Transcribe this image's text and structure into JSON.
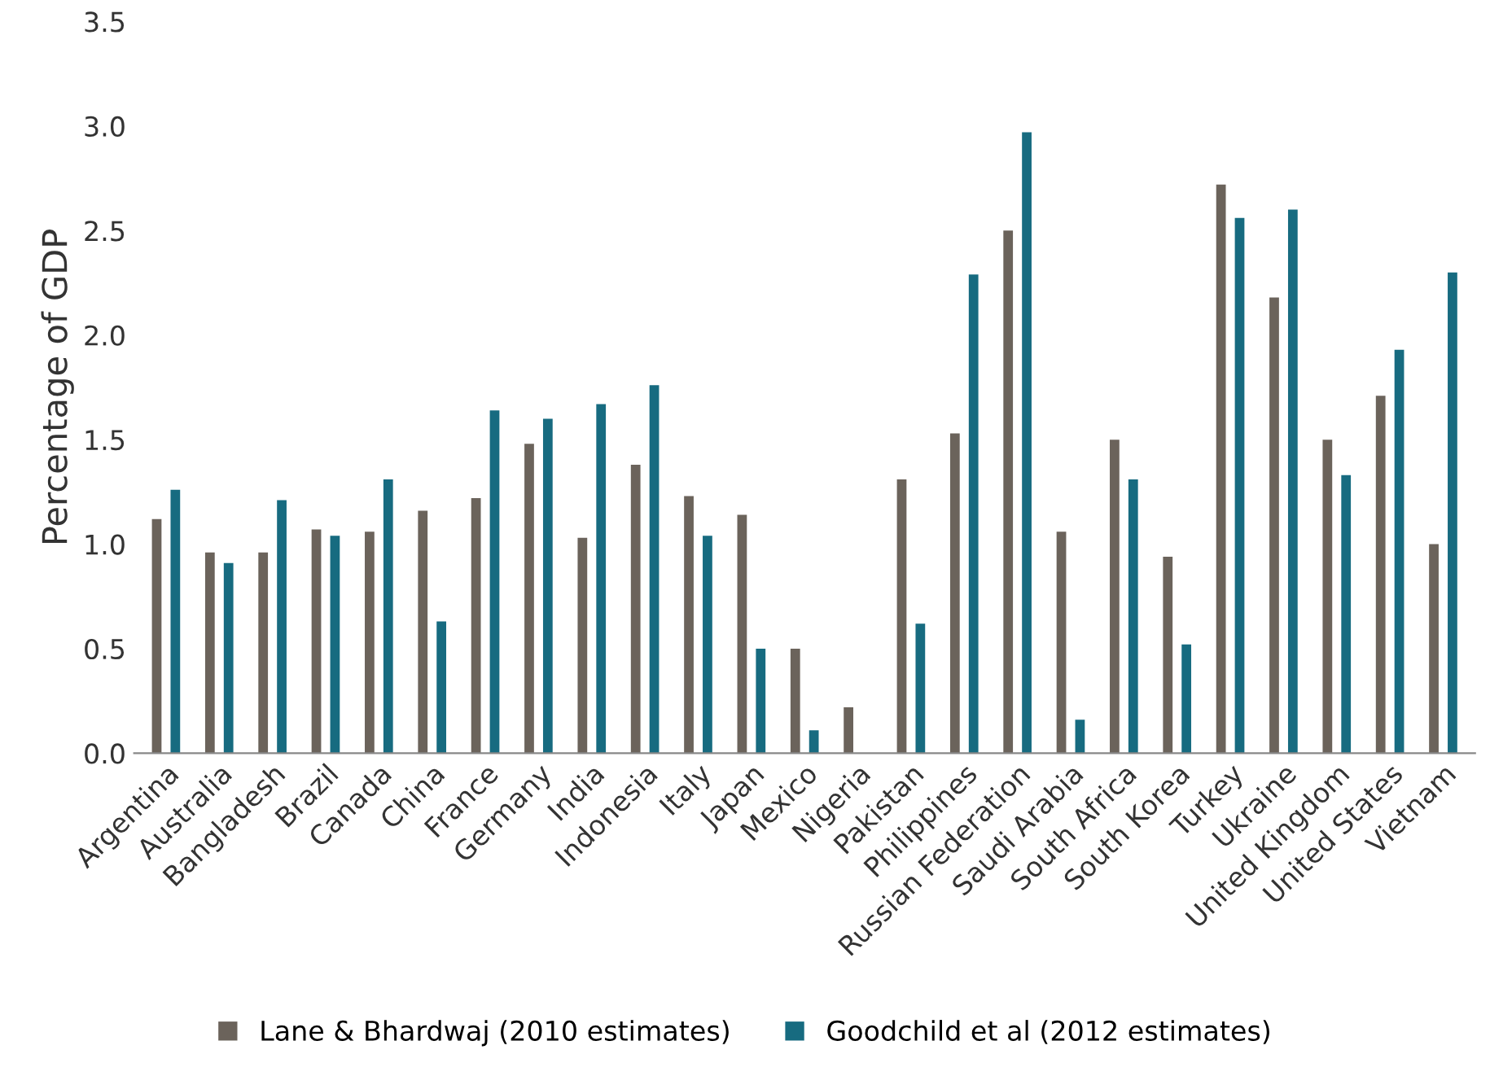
{
  "chart_data": {
    "type": "bar",
    "ylabel": "Percentage of GDP",
    "categories": [
      "Argentina",
      "Australia",
      "Bangladesh",
      "Brazil",
      "Canada",
      "China",
      "France",
      "Germany",
      "India",
      "Indonesia",
      "Italy",
      "Japan",
      "Mexico",
      "Nigeria",
      "Pakistan",
      "Philippines",
      "Russian Federation",
      "Saudi Arabia",
      "South Africa",
      "South Korea",
      "Turkey",
      "Ukraine",
      "United Kingdom",
      "United States",
      "Vietnam"
    ],
    "series": [
      {
        "name": "Lane & Bhardwaj (2010 estimates)",
        "color": "#6b635b",
        "values": [
          1.12,
          0.96,
          0.96,
          1.07,
          1.06,
          1.16,
          1.22,
          1.48,
          1.03,
          1.38,
          1.23,
          1.14,
          0.5,
          0.22,
          1.31,
          1.53,
          2.5,
          1.06,
          1.5,
          0.94,
          2.72,
          2.18,
          1.5,
          1.71,
          1.0
        ]
      },
      {
        "name": "Goodchild et al (2012 estimates)",
        "color": "#176b80",
        "values": [
          1.26,
          0.91,
          1.21,
          1.04,
          1.31,
          0.63,
          1.64,
          1.6,
          1.67,
          1.76,
          1.04,
          0.5,
          0.11,
          null,
          0.62,
          2.29,
          2.97,
          0.16,
          1.31,
          0.52,
          2.56,
          2.6,
          1.33,
          1.93,
          2.3
        ]
      }
    ],
    "ylim": [
      0,
      3.5
    ],
    "yticks": [
      {
        "value": 0,
        "label": "0.0"
      },
      {
        "value": 0.5,
        "label": "0.5"
      },
      {
        "value": 1,
        "label": "1.0"
      },
      {
        "value": 1.5,
        "label": "1.5"
      },
      {
        "value": 2,
        "label": "2.0"
      },
      {
        "value": 2.5,
        "label": "2.5"
      },
      {
        "value": 3,
        "label": "3.0"
      },
      {
        "value": 3.5,
        "label": "3.5"
      }
    ],
    "grid": false,
    "legend": "bottom"
  }
}
